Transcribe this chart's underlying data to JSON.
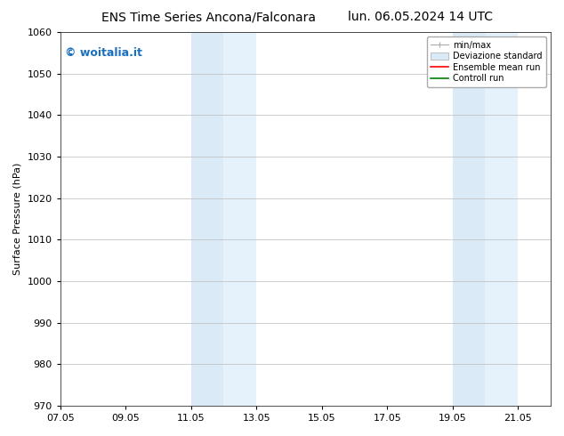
{
  "title_left": "ENS Time Series Ancona/Falconara",
  "title_right": "lun. 06.05.2024 14 UTC",
  "ylabel": "Surface Pressure (hPa)",
  "ylim": [
    970,
    1060
  ],
  "yticks": [
    970,
    980,
    990,
    1000,
    1010,
    1020,
    1030,
    1040,
    1050,
    1060
  ],
  "xlim_start": 7.05,
  "xlim_end": 22.05,
  "xtick_labels": [
    "07.05",
    "09.05",
    "11.05",
    "13.05",
    "15.05",
    "17.05",
    "19.05",
    "21.05"
  ],
  "xtick_positions": [
    7.05,
    9.05,
    11.05,
    13.05,
    15.05,
    17.05,
    19.05,
    21.05
  ],
  "shaded_regions": [
    {
      "xmin": 11.05,
      "xmax": 12.05,
      "color": "#daeaf7"
    },
    {
      "xmin": 12.05,
      "xmax": 13.05,
      "color": "#e6f2fb"
    },
    {
      "xmin": 19.05,
      "xmax": 20.05,
      "color": "#daeaf7"
    },
    {
      "xmin": 20.05,
      "xmax": 21.05,
      "color": "#e6f2fb"
    }
  ],
  "watermark_text": "© woitalia.it",
  "watermark_color": "#1a6fbf",
  "bg_color": "#ffffff",
  "plot_bg_color": "#ffffff",
  "grid_color": "#bbbbbb",
  "title_fontsize": 10,
  "tick_fontsize": 8,
  "label_fontsize": 8
}
